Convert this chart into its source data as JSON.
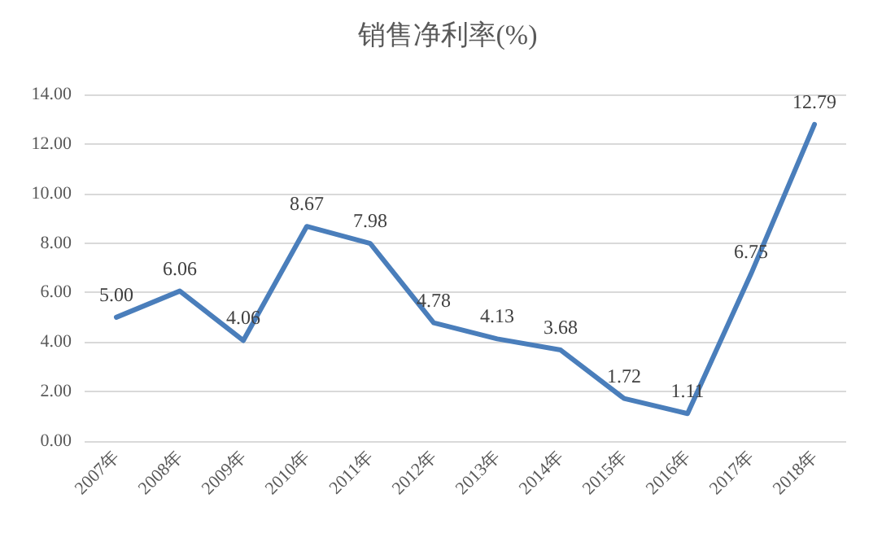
{
  "chart_data": {
    "type": "line",
    "title": "销售净利率(%)",
    "categories": [
      "2007年",
      "2008年",
      "2009年",
      "2010年",
      "2011年",
      "2012年",
      "2013年",
      "2014年",
      "2015年",
      "2016年",
      "2017年",
      "2018年"
    ],
    "series": [
      {
        "color": "#4a7ebb",
        "values": [
          5.0,
          6.06,
          4.06,
          8.67,
          7.98,
          4.78,
          4.13,
          3.68,
          1.72,
          1.11,
          6.75,
          12.79
        ],
        "value_labels": [
          "5.00",
          "6.06",
          "4.06",
          "8.67",
          "7.98",
          "4.78",
          "4.13",
          "3.68",
          "1.72",
          "1.11",
          "6.75",
          "12.79"
        ]
      }
    ],
    "ylim": [
      0,
      14
    ],
    "yticks": [
      {
        "value": 0,
        "label": "0.00"
      },
      {
        "value": 2,
        "label": "2.00"
      },
      {
        "value": 4,
        "label": "4.00"
      },
      {
        "value": 6,
        "label": "6.00"
      },
      {
        "value": 8,
        "label": "8.00"
      },
      {
        "value": 10,
        "label": "10.00"
      },
      {
        "value": 12,
        "label": "12.00"
      },
      {
        "value": 14,
        "label": "14.00"
      }
    ],
    "grid": "y",
    "marker": "none",
    "line_style": "solid"
  }
}
